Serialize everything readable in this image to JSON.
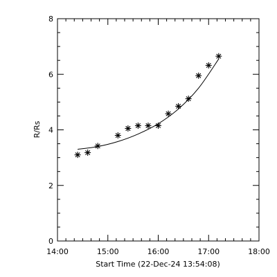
{
  "chart_data": {
    "type": "scatter",
    "xlabel": "Start Time (22-Dec-24 13:54:08)",
    "ylabel": "R/Rs",
    "xlim": [
      "14:00",
      "18:00"
    ],
    "ylim": [
      0,
      8
    ],
    "x_ticks": [
      "14:00",
      "15:00",
      "16:00",
      "17:00",
      "18:00"
    ],
    "y_ticks": [
      "0",
      "2",
      "4",
      "6",
      "8"
    ],
    "grid": false,
    "series": [
      {
        "marker": "asterisk",
        "x": [
          "14:24",
          "14:36",
          "14:48",
          "15:12",
          "15:24",
          "15:36",
          "15:48",
          "16:00",
          "16:12",
          "16:24",
          "16:36",
          "16:48",
          "17:00",
          "17:12"
        ],
        "y": [
          3.1,
          3.18,
          3.42,
          3.8,
          4.05,
          4.15,
          4.15,
          4.15,
          4.58,
          4.85,
          5.12,
          5.95,
          6.32,
          6.65
        ]
      }
    ],
    "fit": {
      "style": "line",
      "x": [
        "14:24",
        "14:48",
        "15:12",
        "15:36",
        "16:00",
        "16:24",
        "16:48",
        "17:12"
      ],
      "y": [
        3.3,
        3.4,
        3.58,
        3.85,
        4.22,
        4.75,
        5.5,
        6.55
      ]
    }
  }
}
